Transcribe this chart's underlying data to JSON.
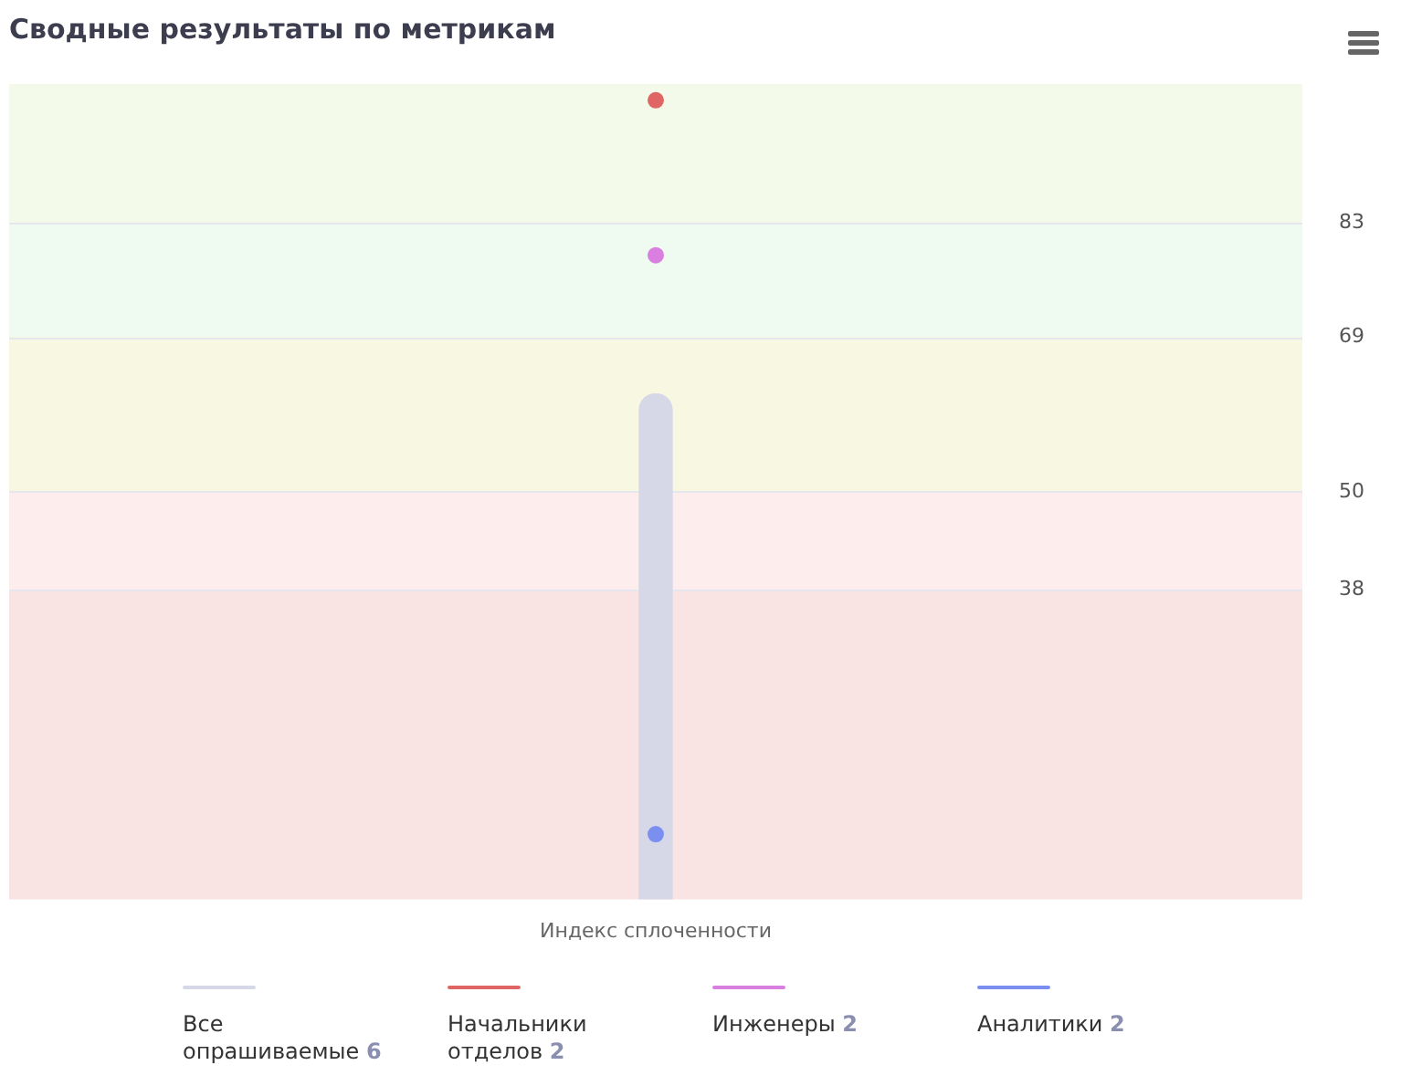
{
  "chart_data": {
    "type": "bar",
    "title": "Сводные результаты по метрикам",
    "categories": [
      "Индекс сплоченности"
    ],
    "series": [
      {
        "name": "Все опрашиваемые 6",
        "color": "#d6d8e8",
        "values": [
          62
        ]
      },
      {
        "name": "Начальники отделов 2",
        "type": "scatter",
        "color": "#e06666",
        "x": [
          "Индекс сплоченности"
        ],
        "values": [
          98
        ]
      },
      {
        "name": "Инженеры 2",
        "type": "scatter",
        "color": "#d97fe0",
        "x": [
          "Индекс сплоченности"
        ],
        "values": [
          79
        ]
      },
      {
        "name": "Аналитики 2",
        "type": "scatter",
        "color": "#7b8ff0",
        "x": [
          "Индекс сплоченности"
        ],
        "values": [
          8
        ]
      }
    ],
    "ylim": [
      0,
      100
    ],
    "yticks": [
      38,
      50,
      69,
      83
    ],
    "grid": "y",
    "legend": "bottom",
    "marker": "circle",
    "bands": [
      {
        "axis": "y",
        "from": 0,
        "to": 38,
        "color": "#fae4e3"
      },
      {
        "axis": "y",
        "from": 38,
        "to": 50,
        "color": "#fdeeed"
      },
      {
        "axis": "y",
        "from": 50,
        "to": 69,
        "color": "#f8f8e2"
      },
      {
        "axis": "y",
        "from": 69,
        "to": 83,
        "color": "#effaf0"
      },
      {
        "axis": "y",
        "from": 83,
        "to": 100,
        "color": "#f3faea"
      }
    ]
  }
}
